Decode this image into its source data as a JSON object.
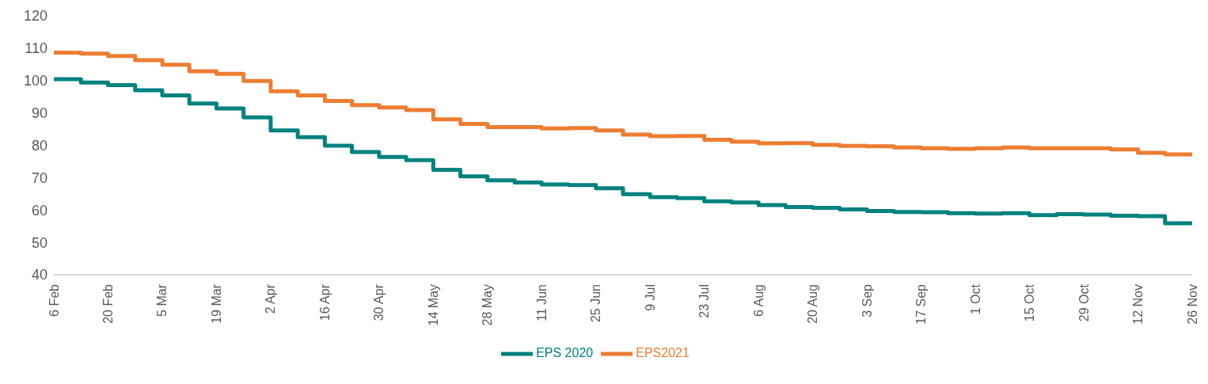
{
  "chart_data": {
    "type": "step",
    "categories": [
      "6 Feb",
      null,
      "20 Feb",
      null,
      "5 Mar",
      null,
      "19 Mar",
      null,
      "2 Apr",
      null,
      "16 Apr",
      null,
      "30 Apr",
      null,
      "14 May",
      null,
      "28 May",
      null,
      "11 Jun",
      null,
      "25 Jun",
      null,
      "9 Jul",
      null,
      "23 Jul",
      null,
      "6 Aug",
      null,
      "20 Aug",
      null,
      "3 Sep",
      null,
      "17 Sep",
      null,
      "1 Oct",
      null,
      "15 Oct",
      null,
      "29 Oct",
      null,
      "12 Nov",
      null,
      "26 Nov"
    ],
    "series": [
      {
        "name": "EPS 2020",
        "color": "#00827f",
        "values": [
          100.4,
          99.4,
          98.6,
          97.0,
          95.4,
          92.9,
          91.4,
          88.6,
          84.6,
          82.5,
          79.9,
          77.9,
          76.4,
          75.4,
          72.4,
          70.4,
          69.2,
          68.5,
          67.9,
          67.7,
          66.7,
          64.9,
          64.0,
          63.7,
          62.7,
          62.3,
          61.5,
          60.9,
          60.7,
          60.2,
          59.7,
          59.4,
          59.3,
          59.0,
          58.9,
          59.0,
          58.4,
          58.7,
          58.6,
          58.2,
          58.1,
          55.9,
          55.9
        ]
      },
      {
        "name": "EPS2021",
        "color": "#ed7d31",
        "values": [
          108.6,
          108.3,
          107.6,
          106.3,
          104.9,
          102.9,
          102.1,
          99.9,
          96.7,
          95.4,
          93.7,
          92.4,
          91.7,
          90.9,
          88.0,
          86.6,
          85.6,
          85.6,
          85.2,
          85.3,
          84.6,
          83.3,
          82.8,
          82.9,
          81.7,
          81.1,
          80.6,
          80.7,
          80.1,
          79.8,
          79.7,
          79.3,
          79.1,
          78.9,
          79.1,
          79.3,
          79.1,
          79.1,
          79.1,
          78.7,
          77.7,
          77.2,
          77.2
        ]
      }
    ],
    "ylim": [
      40,
      120
    ],
    "yticks": [
      40,
      50,
      60,
      70,
      80,
      90,
      100,
      110,
      120
    ],
    "grid": false,
    "legend": "bottom",
    "marker": "none",
    "line_style": "solid"
  }
}
